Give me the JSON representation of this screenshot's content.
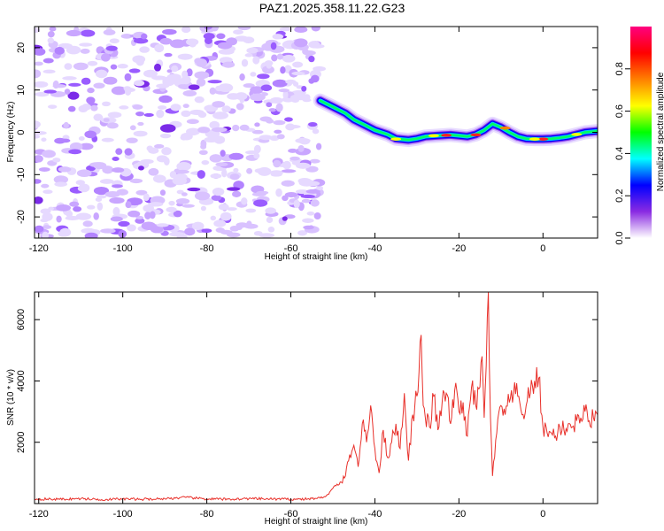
{
  "title": "PAZ1.2025.358.11.22.G23",
  "chart_data": [
    {
      "type": "heatmap",
      "xlabel": "Height of straight line (km)",
      "ylabel": "Frequency (Hz)",
      "xlim": [
        -121,
        13
      ],
      "ylim": [
        -25,
        25
      ],
      "xticks": [
        -120,
        -100,
        -80,
        -60,
        -40,
        -20,
        0
      ],
      "yticks": [
        -20,
        -10,
        0,
        10,
        20
      ],
      "noise_region_x": [
        -121,
        -53
      ],
      "ridge": {
        "name": "Signal ridge (frequency vs height)",
        "x": [
          -53,
          -50,
          -47,
          -45,
          -42,
          -40,
          -37,
          -35,
          -32,
          -30,
          -28,
          -25,
          -22,
          -20,
          -18,
          -16,
          -14,
          -12,
          -10,
          -8,
          -6,
          -4,
          -2,
          0,
          2,
          4,
          6,
          8,
          10,
          13
        ],
        "y": [
          7.5,
          6,
          4.5,
          3,
          1.5,
          0.5,
          -0.5,
          -1.5,
          -1.8,
          -1.5,
          -1,
          -0.8,
          -0.6,
          -0.8,
          -1,
          -0.5,
          0.5,
          2,
          1.2,
          0,
          -1,
          -1.5,
          -1.6,
          -1.6,
          -1.5,
          -1.3,
          -1,
          -0.5,
          0,
          0.3
        ]
      },
      "colorbar": {
        "label": "Normalized spectral amplitude",
        "range": [
          0,
          1
        ],
        "ticks": [
          "0.0",
          "0.2",
          "0.4",
          "0.6",
          "0.8"
        ],
        "colors": [
          "#ffffff",
          "#8a2be2",
          "#0000ff",
          "#00ffff",
          "#00ff00",
          "#ffff00",
          "#ff8000",
          "#ff0000",
          "#ff0080"
        ]
      }
    },
    {
      "type": "line",
      "xlabel": "Height of straight line (km)",
      "ylabel": "SNR (10 * v/v)",
      "xlim": [
        -121,
        13
      ],
      "ylim": [
        0,
        6900
      ],
      "xticks": [
        -120,
        -100,
        -80,
        -60,
        -40,
        -20,
        0
      ],
      "yticks": [
        2000,
        4000,
        6000
      ],
      "series": [
        {
          "name": "SNR",
          "color": "#e8302a",
          "x": [
            -121,
            -115,
            -110,
            -105,
            -100,
            -95,
            -90,
            -85,
            -80,
            -75,
            -70,
            -65,
            -60,
            -56,
            -53,
            -51,
            -50,
            -48,
            -47,
            -46,
            -45,
            -44,
            -43,
            -42,
            -41,
            -40,
            -39,
            -38,
            -37,
            -36,
            -35,
            -34,
            -33,
            -32,
            -31,
            -30,
            -29.5,
            -29,
            -28.5,
            -28,
            -27,
            -26,
            -25,
            -24,
            -23,
            -22,
            -21,
            -20,
            -19,
            -18,
            -17,
            -16,
            -15,
            -14.5,
            -14,
            -13.5,
            -13,
            -12.5,
            -12,
            -11,
            -10,
            -9,
            -8,
            -7,
            -6,
            -5,
            -4,
            -3,
            -2,
            -1,
            0,
            1,
            2,
            3,
            4,
            5,
            6,
            7,
            8,
            9,
            10,
            11,
            12,
            13
          ],
          "y": [
            150,
            140,
            160,
            130,
            150,
            140,
            160,
            200,
            150,
            140,
            160,
            150,
            140,
            150,
            180,
            300,
            500,
            700,
            900,
            1600,
            1900,
            1200,
            2600,
            2000,
            3200,
            1800,
            1000,
            2400,
            1500,
            2000,
            2600,
            1800,
            3600,
            1400,
            2900,
            3500,
            4300,
            5500,
            3200,
            2800,
            2500,
            3500,
            2400,
            3300,
            3600,
            2600,
            3700,
            3000,
            3300,
            2200,
            3800,
            3200,
            3800,
            4800,
            2800,
            4500,
            6900,
            2800,
            900,
            2300,
            3200,
            2900,
            3300,
            3600,
            3500,
            2900,
            3200,
            3600,
            4000,
            4100,
            2500,
            2300,
            2300,
            2200,
            2500,
            2400,
            2600,
            2500,
            2700,
            2800,
            3000,
            2700,
            2800,
            2900
          ]
        }
      ]
    }
  ]
}
